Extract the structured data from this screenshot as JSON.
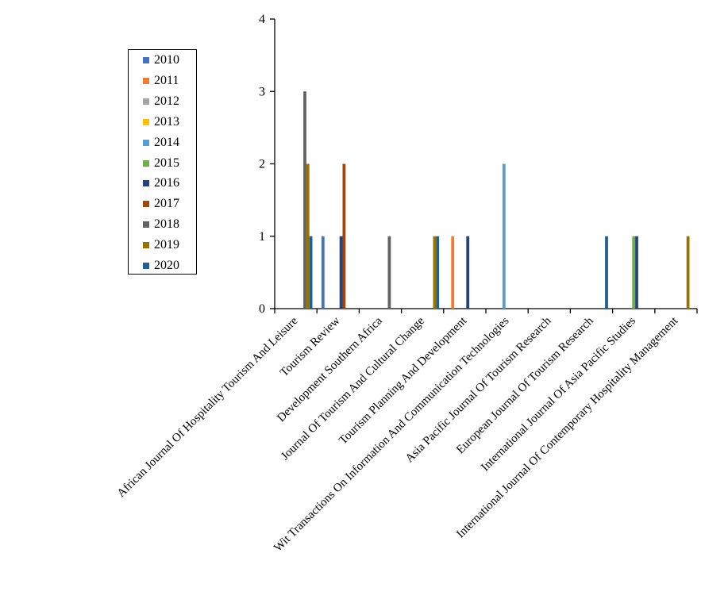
{
  "chart_data": {
    "type": "bar",
    "title": "",
    "xlabel": "",
    "ylabel": "",
    "ylim": [
      0,
      4
    ],
    "yticks": [
      "0",
      "1",
      "2",
      "3",
      "4"
    ],
    "grid": false,
    "legend_position": "left",
    "categories": [
      "African Journal Of Hospitality Tourism And Leisure",
      "Tourism Review",
      "Development Southern Africa",
      "Journal Of Tourism And Cultural Change",
      "Tourism Planning And Development",
      "Wit Transactions On Information And Communication Technologies",
      "Asia Pacific Journal Of Tourism Research",
      "European Journal Of Tourism Research",
      "International Journal Of Asia Pacific Studies",
      "International Journal Of Contemporary Hospitality Management"
    ],
    "series": [
      {
        "name": "2010",
        "color": "#4472C4",
        "values": [
          0,
          1,
          0,
          0,
          0,
          0,
          0,
          0,
          0,
          0
        ]
      },
      {
        "name": "2011",
        "color": "#ED7D31",
        "values": [
          0,
          0,
          0,
          0,
          1,
          0,
          0,
          0,
          0,
          0
        ]
      },
      {
        "name": "2012",
        "color": "#A5A5A5",
        "values": [
          0,
          0,
          0,
          0,
          0,
          0,
          0,
          0,
          0,
          0
        ]
      },
      {
        "name": "2013",
        "color": "#FFC000",
        "values": [
          0,
          0,
          0,
          0,
          0,
          0,
          0,
          0,
          0,
          0
        ]
      },
      {
        "name": "2014",
        "color": "#5B9BD5",
        "values": [
          0,
          0,
          0,
          0,
          0,
          2,
          0,
          0,
          0,
          0
        ]
      },
      {
        "name": "2015",
        "color": "#70AD47",
        "values": [
          0,
          0,
          0,
          0,
          0,
          0,
          0,
          0,
          1,
          0
        ]
      },
      {
        "name": "2016",
        "color": "#264478",
        "values": [
          0,
          1,
          0,
          0,
          1,
          0,
          0,
          0,
          1,
          0
        ]
      },
      {
        "name": "2017",
        "color": "#9E480E",
        "values": [
          0,
          2,
          0,
          0,
          0,
          0,
          0,
          0,
          0,
          0
        ]
      },
      {
        "name": "2018",
        "color": "#636363",
        "values": [
          3,
          0,
          1,
          0,
          0,
          0,
          0,
          0,
          0,
          0
        ]
      },
      {
        "name": "2019",
        "color": "#997300",
        "values": [
          2,
          0,
          0,
          1,
          0,
          0,
          0,
          0,
          0,
          1
        ]
      },
      {
        "name": "2020",
        "color": "#255E91",
        "values": [
          1,
          0,
          0,
          1,
          0,
          0,
          0,
          1,
          0,
          0
        ]
      }
    ]
  }
}
